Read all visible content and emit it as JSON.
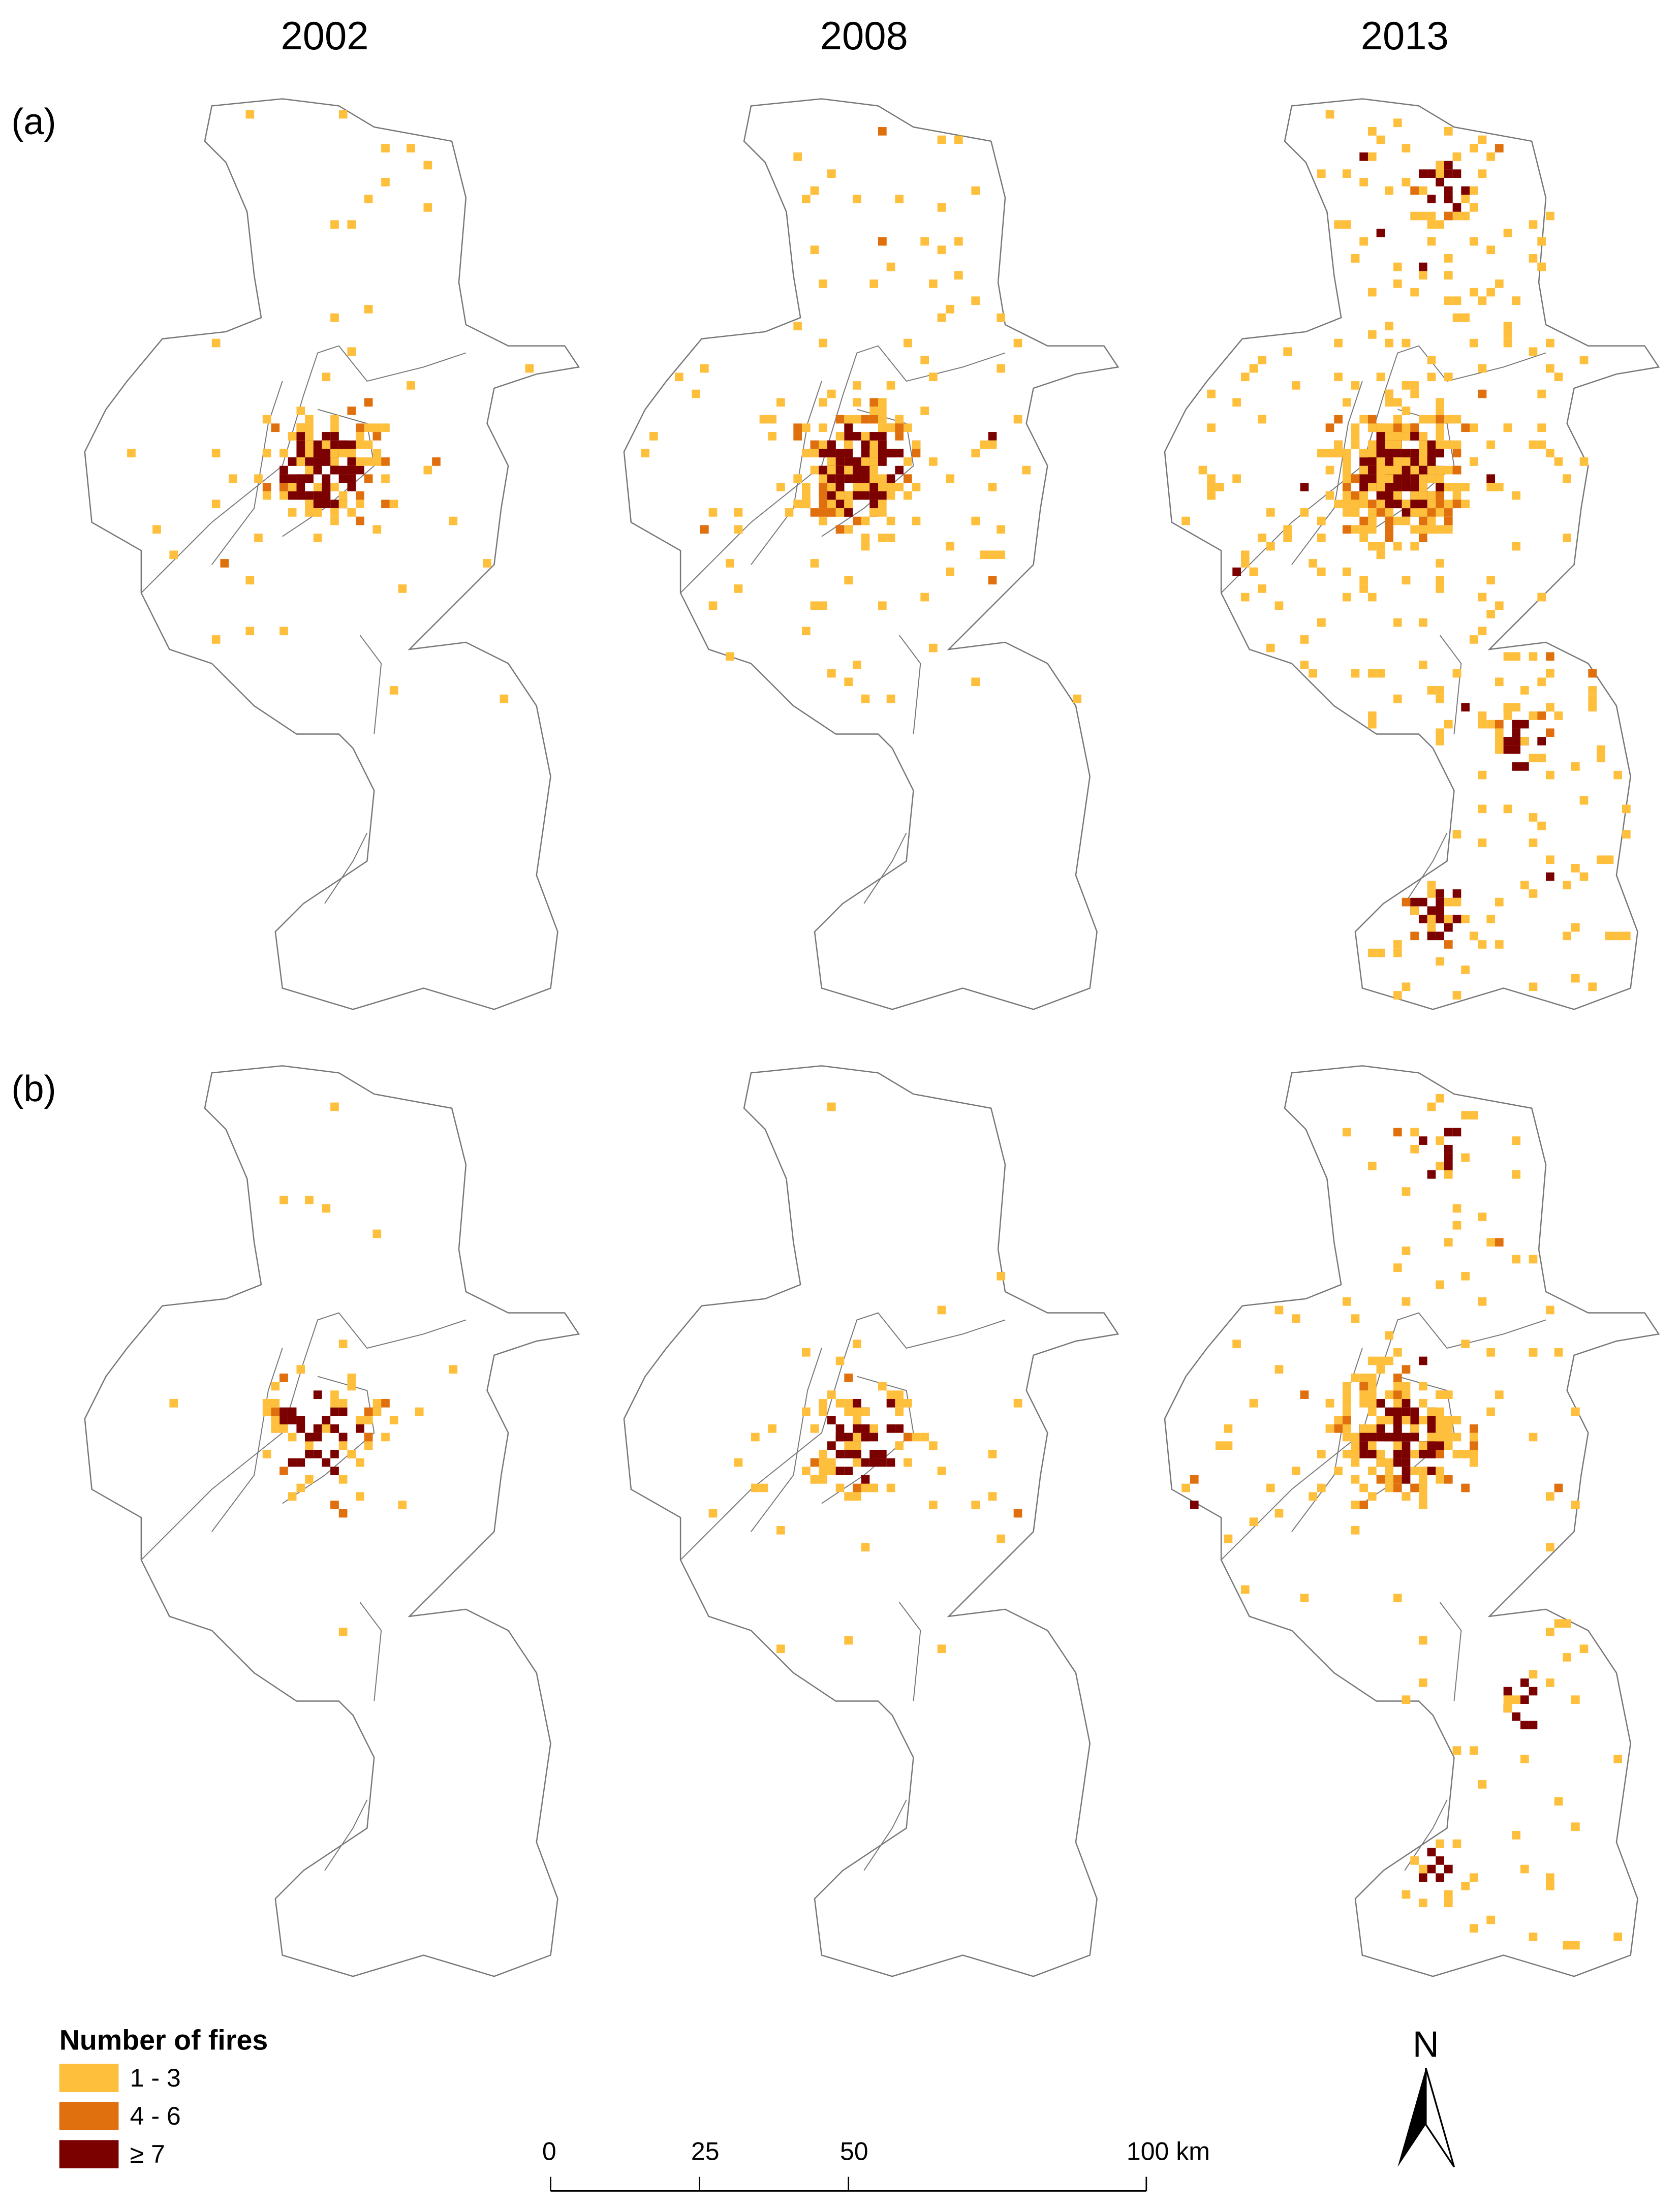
{
  "columns": [
    "2002",
    "2008",
    "2013"
  ],
  "rows": [
    "(a)",
    "(b)"
  ],
  "legend": {
    "title": "Number of fires",
    "items": [
      {
        "label": "1 - 3",
        "color": "#fdbf3c"
      },
      {
        "label": "4 - 6",
        "color": "#e0700e"
      },
      {
        "label": "≥ 7",
        "color": "#7b0000"
      }
    ]
  },
  "scale_bar": {
    "ticks": [
      0,
      25,
      50,
      {
        "value": 100,
        "label": "100 km"
      }
    ]
  },
  "north_arrow": "N"
}
